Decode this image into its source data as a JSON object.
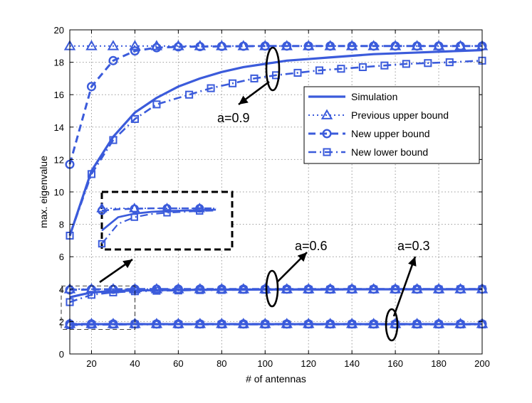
{
  "chart_data": {
    "type": "line",
    "title": "",
    "xlabel": "# of antennas",
    "ylabel": "max. eigenvalue",
    "xlim": [
      10,
      200
    ],
    "ylim": [
      0,
      20
    ],
    "xticks": [
      20,
      40,
      60,
      80,
      100,
      120,
      140,
      160,
      180,
      200
    ],
    "yticks": [
      0,
      2,
      4,
      6,
      8,
      10,
      12,
      14,
      16,
      18,
      20
    ],
    "grid": true,
    "legend_position": "top-right",
    "colors": {
      "series": "#3b5bdb",
      "annotation": "#000000"
    },
    "legend": [
      {
        "label": "Simulation",
        "line": "solid",
        "marker": "none"
      },
      {
        "label": "Previous upper bound",
        "line": "dotted",
        "marker": "triangle"
      },
      {
        "label": "New upper bound",
        "line": "dashed",
        "marker": "circle"
      },
      {
        "label": "New lower bound",
        "line": "dashdot",
        "marker": "square"
      }
    ],
    "groups": [
      {
        "label": "a=0.9",
        "series": [
          {
            "style": "simulation",
            "x": [
              10,
              20,
              30,
              40,
              50,
              60,
              70,
              80,
              90,
              100,
              110,
              120,
              130,
              140,
              150,
              160,
              170,
              180,
              190,
              200
            ],
            "y": [
              7.3,
              11.3,
              13.4,
              14.9,
              15.8,
              16.5,
              17.0,
              17.4,
              17.7,
              17.9,
              18.1,
              18.2,
              18.3,
              18.4,
              18.5,
              18.55,
              18.6,
              18.65,
              18.7,
              18.75
            ]
          },
          {
            "style": "previous_upper",
            "x": [
              10,
              20,
              30,
              40,
              50,
              60,
              70,
              80,
              90,
              100,
              110,
              120,
              130,
              140,
              150,
              160,
              170,
              180,
              190,
              200
            ],
            "y": [
              19,
              19,
              19,
              19,
              19,
              19,
              19,
              19,
              19,
              19,
              19,
              19,
              19,
              19,
              19,
              19,
              19,
              19,
              19,
              19
            ]
          },
          {
            "style": "new_upper",
            "x": [
              10,
              20,
              30,
              40,
              50,
              60,
              70,
              80,
              90,
              100,
              110,
              120,
              130,
              140,
              150,
              160,
              170,
              180,
              190,
              200
            ],
            "y": [
              11.7,
              16.5,
              18.1,
              18.7,
              18.9,
              18.95,
              18.97,
              18.98,
              18.99,
              19,
              19,
              19,
              19,
              19,
              19,
              19,
              19,
              19,
              19,
              19
            ]
          },
          {
            "style": "new_lower",
            "x": [
              10,
              20,
              30,
              40,
              50,
              65,
              75,
              85,
              95,
              105,
              115,
              125,
              135,
              145,
              155,
              165,
              175,
              185,
              200
            ],
            "y": [
              7.3,
              11.1,
              13.2,
              14.5,
              15.4,
              16.0,
              16.4,
              16.7,
              17.0,
              17.2,
              17.35,
              17.5,
              17.6,
              17.7,
              17.8,
              17.9,
              17.95,
              18.0,
              18.1
            ]
          }
        ]
      },
      {
        "label": "a=0.6",
        "series": [
          {
            "style": "simulation",
            "x": [
              10,
              20,
              30,
              40,
              50,
              60,
              70,
              80,
              90,
              100,
              110,
              120,
              130,
              140,
              150,
              160,
              170,
              180,
              190,
              200
            ],
            "y": [
              3.5,
              3.8,
              3.88,
              3.92,
              3.94,
              3.95,
              3.96,
              3.97,
              3.97,
              3.98,
              3.98,
              3.98,
              3.98,
              3.99,
              3.99,
              3.99,
              3.99,
              3.99,
              3.99,
              3.99
            ]
          },
          {
            "style": "previous_upper",
            "x": [
              10,
              20,
              30,
              40,
              50,
              60,
              70,
              80,
              90,
              100,
              110,
              120,
              130,
              140,
              150,
              160,
              170,
              180,
              190,
              200
            ],
            "y": [
              4.0,
              4.0,
              4.0,
              4.0,
              4.0,
              4.0,
              4.0,
              4.0,
              4.0,
              4.0,
              4.0,
              4.0,
              4.0,
              4.0,
              4.0,
              4.0,
              4.0,
              4.0,
              4.0,
              4.0
            ]
          },
          {
            "style": "new_upper",
            "x": [
              10,
              20,
              30,
              40,
              50,
              60,
              70,
              80,
              90,
              100,
              110,
              120,
              130,
              140,
              150,
              160,
              170,
              180,
              190,
              200
            ],
            "y": [
              3.95,
              3.98,
              3.99,
              4.0,
              4.0,
              4.0,
              4.0,
              4.0,
              4.0,
              4.0,
              4.0,
              4.0,
              4.0,
              4.0,
              4.0,
              4.0,
              4.0,
              4.0,
              4.0,
              4.0
            ]
          },
          {
            "style": "new_lower",
            "x": [
              10,
              20,
              30,
              40,
              50,
              60,
              70,
              80,
              90,
              100,
              110,
              120,
              130,
              140,
              150,
              160,
              170,
              180,
              190,
              200
            ],
            "y": [
              3.2,
              3.65,
              3.8,
              3.87,
              3.9,
              3.92,
              3.94,
              3.95,
              3.96,
              3.96,
              3.97,
              3.97,
              3.97,
              3.98,
              3.98,
              3.98,
              3.98,
              3.98,
              3.99,
              3.99
            ]
          }
        ]
      },
      {
        "label": "a=0.3",
        "series": [
          {
            "style": "simulation",
            "x": [
              10,
              20,
              30,
              40,
              50,
              60,
              70,
              80,
              90,
              100,
              110,
              120,
              130,
              140,
              150,
              160,
              170,
              180,
              190,
              200
            ],
            "y": [
              1.82,
              1.84,
              1.84,
              1.84,
              1.84,
              1.84,
              1.84,
              1.84,
              1.84,
              1.84,
              1.84,
              1.84,
              1.84,
              1.84,
              1.84,
              1.84,
              1.84,
              1.84,
              1.84,
              1.84
            ]
          },
          {
            "style": "previous_upper",
            "x": [
              10,
              20,
              30,
              40,
              50,
              60,
              70,
              80,
              90,
              100,
              110,
              120,
              130,
              140,
              150,
              160,
              170,
              180,
              190,
              200
            ],
            "y": [
              1.86,
              1.86,
              1.86,
              1.86,
              1.86,
              1.86,
              1.86,
              1.86,
              1.86,
              1.86,
              1.86,
              1.86,
              1.86,
              1.86,
              1.86,
              1.86,
              1.86,
              1.86,
              1.86,
              1.86
            ]
          },
          {
            "style": "new_upper",
            "x": [
              10,
              20,
              30,
              40,
              50,
              60,
              70,
              80,
              90,
              100,
              110,
              120,
              130,
              140,
              150,
              160,
              170,
              180,
              190,
              200
            ],
            "y": [
              1.85,
              1.85,
              1.85,
              1.85,
              1.85,
              1.85,
              1.85,
              1.85,
              1.85,
              1.85,
              1.85,
              1.85,
              1.85,
              1.85,
              1.85,
              1.85,
              1.85,
              1.85,
              1.85,
              1.85
            ]
          },
          {
            "style": "new_lower",
            "x": [
              10,
              20,
              30,
              40,
              50,
              60,
              70,
              80,
              90,
              100,
              110,
              120,
              130,
              140,
              150,
              160,
              170,
              180,
              190,
              200
            ],
            "y": [
              1.78,
              1.8,
              1.81,
              1.82,
              1.82,
              1.82,
              1.82,
              1.82,
              1.82,
              1.82,
              1.82,
              1.82,
              1.82,
              1.82,
              1.82,
              1.82,
              1.82,
              1.82,
              1.82,
              1.82
            ]
          }
        ]
      }
    ],
    "inset": {
      "description_source": "magnified view of a=0.6 curves for small number of antennas",
      "source_region": {
        "x": [
          10,
          40
        ],
        "y": [
          3.0,
          4.2
        ]
      }
    }
  }
}
